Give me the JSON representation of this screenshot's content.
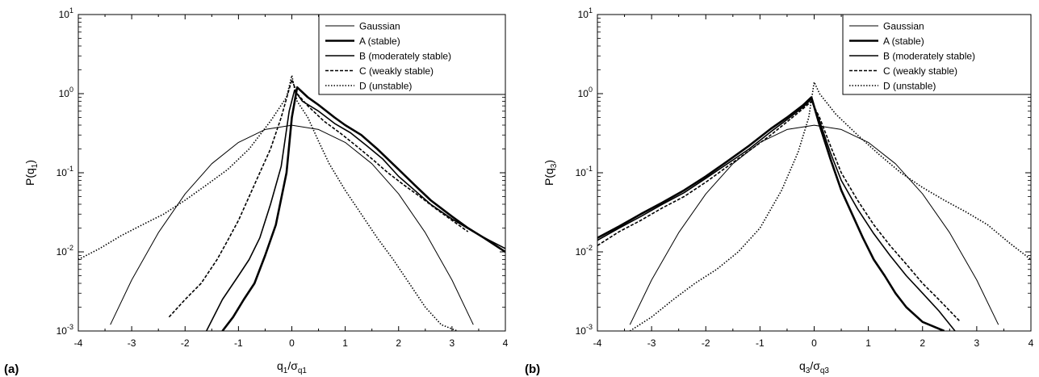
{
  "chart_data": [
    {
      "type": "line",
      "panel_label": "(a)",
      "xlabel": "q1/σq1",
      "xlabel_main": "q",
      "xlabel_main_sub": "1",
      "xlabel_den": "σ",
      "xlabel_den_sub": "q1",
      "ylabel": "P(q1)",
      "ylabel_main": "P(q",
      "ylabel_sub": "1",
      "ylabel_close": ")",
      "xlim": [
        -4,
        4
      ],
      "ylim": [
        0.001,
        10
      ],
      "yscale": "log",
      "xticks": [
        "-4",
        "-3",
        "-2",
        "-1",
        "0",
        "1",
        "2",
        "3",
        "4"
      ],
      "yticks": [
        {
          "base": "10",
          "exp": "-3"
        },
        {
          "base": "10",
          "exp": "-2"
        },
        {
          "base": "10",
          "exp": "-1"
        },
        {
          "base": "10",
          "exp": "0"
        },
        {
          "base": "10",
          "exp": "1"
        }
      ],
      "grid": false,
      "legend_position": "top-right",
      "series": [
        {
          "name": "Gaussian",
          "style": "thin-solid",
          "x": [
            -3.4,
            -3.0,
            -2.5,
            -2.0,
            -1.5,
            -1.0,
            -0.5,
            0.0,
            0.5,
            1.0,
            1.5,
            2.0,
            2.5,
            3.0,
            3.4
          ],
          "y": [
            0.0012,
            0.0044,
            0.0175,
            0.054,
            0.13,
            0.242,
            0.352,
            0.399,
            0.352,
            0.242,
            0.13,
            0.054,
            0.0175,
            0.0044,
            0.0012
          ]
        },
        {
          "name": "A (stable)",
          "style": "thick-solid",
          "x": [
            -1.3,
            -1.1,
            -0.9,
            -0.7,
            -0.5,
            -0.3,
            -0.1,
            0.0,
            0.1,
            0.3,
            0.5,
            0.8,
            1.0,
            1.3,
            1.6,
            2.0,
            2.3,
            2.6,
            3.0,
            3.3,
            3.6,
            4.0
          ],
          "y": [
            0.001,
            0.0015,
            0.0025,
            0.004,
            0.009,
            0.022,
            0.1,
            0.5,
            1.2,
            0.9,
            0.72,
            0.5,
            0.4,
            0.3,
            0.2,
            0.11,
            0.07,
            0.045,
            0.028,
            0.02,
            0.015,
            0.01
          ]
        },
        {
          "name": "B (moderately stable)",
          "style": "medium-solid",
          "x": [
            -1.6,
            -1.3,
            -1.0,
            -0.8,
            -0.6,
            -0.4,
            -0.2,
            -0.05,
            0.05,
            0.2,
            0.5,
            0.8,
            1.1,
            1.4,
            1.7,
            2.0,
            2.3,
            2.6,
            3.0,
            3.4,
            3.7,
            4.0
          ],
          "y": [
            0.001,
            0.0025,
            0.005,
            0.008,
            0.015,
            0.04,
            0.12,
            0.6,
            1.1,
            0.8,
            0.6,
            0.42,
            0.32,
            0.22,
            0.15,
            0.09,
            0.06,
            0.04,
            0.026,
            0.018,
            0.014,
            0.011
          ]
        },
        {
          "name": "C (weakly stable)",
          "style": "dashed",
          "x": [
            -2.3,
            -2.0,
            -1.7,
            -1.4,
            -1.2,
            -1.0,
            -0.8,
            -0.6,
            -0.4,
            -0.2,
            0.0,
            0.1,
            0.3,
            0.6,
            0.9,
            1.2,
            1.5,
            1.8,
            2.1,
            2.4,
            2.7,
            3.0,
            3.3
          ],
          "y": [
            0.0015,
            0.0025,
            0.004,
            0.008,
            0.014,
            0.025,
            0.05,
            0.1,
            0.2,
            0.5,
            1.5,
            1.0,
            0.7,
            0.45,
            0.32,
            0.22,
            0.15,
            0.1,
            0.07,
            0.05,
            0.035,
            0.025,
            0.018
          ]
        },
        {
          "name": "D (unstable)",
          "style": "dotted",
          "x": [
            -4.0,
            -3.6,
            -3.2,
            -2.8,
            -2.4,
            -2.0,
            -1.6,
            -1.2,
            -0.8,
            -0.4,
            -0.1,
            0.0,
            0.1,
            0.3,
            0.5,
            0.7,
            1.0,
            1.3,
            1.6,
            1.9,
            2.2,
            2.5,
            2.8,
            3.1
          ],
          "y": [
            0.008,
            0.011,
            0.016,
            0.022,
            0.03,
            0.045,
            0.07,
            0.11,
            0.2,
            0.45,
            0.9,
            1.7,
            0.8,
            0.5,
            0.25,
            0.13,
            0.06,
            0.03,
            0.015,
            0.008,
            0.004,
            0.002,
            0.0012,
            0.001
          ]
        }
      ]
    },
    {
      "type": "line",
      "panel_label": "(b)",
      "xlabel": "q3/σq3",
      "xlabel_main": "q",
      "xlabel_main_sub": "3",
      "xlabel_den": "σ",
      "xlabel_den_sub": "q3",
      "ylabel": "P(q3)",
      "ylabel_main": "P(q",
      "ylabel_sub": "3",
      "ylabel_close": ")",
      "xlim": [
        -4,
        4
      ],
      "ylim": [
        0.001,
        10
      ],
      "yscale": "log",
      "xticks": [
        "-4",
        "-3",
        "-2",
        "-1",
        "0",
        "1",
        "2",
        "3",
        "4"
      ],
      "yticks": [
        {
          "base": "10",
          "exp": "-3"
        },
        {
          "base": "10",
          "exp": "-2"
        },
        {
          "base": "10",
          "exp": "-1"
        },
        {
          "base": "10",
          "exp": "0"
        },
        {
          "base": "10",
          "exp": "1"
        }
      ],
      "grid": false,
      "legend_position": "top-right",
      "series": [
        {
          "name": "Gaussian",
          "style": "thin-solid",
          "x": [
            -3.4,
            -3.0,
            -2.5,
            -2.0,
            -1.5,
            -1.0,
            -0.5,
            0.0,
            0.5,
            1.0,
            1.5,
            2.0,
            2.5,
            3.0,
            3.4
          ],
          "y": [
            0.0012,
            0.0044,
            0.0175,
            0.054,
            0.13,
            0.242,
            0.352,
            0.399,
            0.352,
            0.242,
            0.13,
            0.054,
            0.0175,
            0.0044,
            0.0012
          ]
        },
        {
          "name": "A (stable)",
          "style": "thick-solid",
          "x": [
            -4.0,
            -3.6,
            -3.2,
            -2.8,
            -2.4,
            -2.0,
            -1.6,
            -1.2,
            -0.8,
            -0.5,
            -0.2,
            -0.05,
            0.1,
            0.3,
            0.5,
            0.7,
            0.9,
            1.1,
            1.3,
            1.5,
            1.7,
            2.0,
            2.4
          ],
          "y": [
            0.015,
            0.021,
            0.03,
            0.042,
            0.06,
            0.09,
            0.14,
            0.22,
            0.36,
            0.5,
            0.72,
            0.9,
            0.4,
            0.15,
            0.06,
            0.03,
            0.015,
            0.008,
            0.005,
            0.003,
            0.002,
            0.0013,
            0.001
          ]
        },
        {
          "name": "B (moderately stable)",
          "style": "medium-solid",
          "x": [
            -4.0,
            -3.6,
            -3.2,
            -2.8,
            -2.4,
            -2.0,
            -1.6,
            -1.2,
            -0.8,
            -0.5,
            -0.2,
            -0.05,
            0.1,
            0.3,
            0.5,
            0.8,
            1.1,
            1.4,
            1.7,
            2.0,
            2.3,
            2.6
          ],
          "y": [
            0.014,
            0.02,
            0.028,
            0.04,
            0.056,
            0.085,
            0.13,
            0.2,
            0.33,
            0.47,
            0.68,
            0.85,
            0.45,
            0.18,
            0.08,
            0.035,
            0.017,
            0.009,
            0.005,
            0.003,
            0.0018,
            0.001
          ]
        },
        {
          "name": "C (weakly stable)",
          "style": "dashed",
          "x": [
            -4.0,
            -3.6,
            -3.2,
            -2.8,
            -2.4,
            -2.0,
            -1.6,
            -1.2,
            -0.8,
            -0.5,
            -0.2,
            -0.05,
            0.1,
            0.3,
            0.5,
            0.8,
            1.1,
            1.4,
            1.7,
            2.0,
            2.3,
            2.7
          ],
          "y": [
            0.012,
            0.018,
            0.025,
            0.036,
            0.05,
            0.076,
            0.12,
            0.19,
            0.3,
            0.44,
            0.65,
            0.8,
            0.5,
            0.22,
            0.1,
            0.045,
            0.022,
            0.012,
            0.007,
            0.004,
            0.0025,
            0.0013
          ]
        },
        {
          "name": "D (unstable)",
          "style": "dotted",
          "x": [
            -3.4,
            -3.0,
            -2.6,
            -2.2,
            -1.8,
            -1.4,
            -1.0,
            -0.6,
            -0.3,
            -0.1,
            0.0,
            0.1,
            0.4,
            0.8,
            1.2,
            1.6,
            2.0,
            2.4,
            2.8,
            3.2,
            3.6,
            4.0
          ],
          "y": [
            0.001,
            0.0015,
            0.0025,
            0.004,
            0.006,
            0.01,
            0.02,
            0.06,
            0.18,
            0.5,
            1.4,
            1.0,
            0.55,
            0.3,
            0.17,
            0.1,
            0.065,
            0.045,
            0.032,
            0.022,
            0.013,
            0.008
          ]
        }
      ]
    }
  ]
}
